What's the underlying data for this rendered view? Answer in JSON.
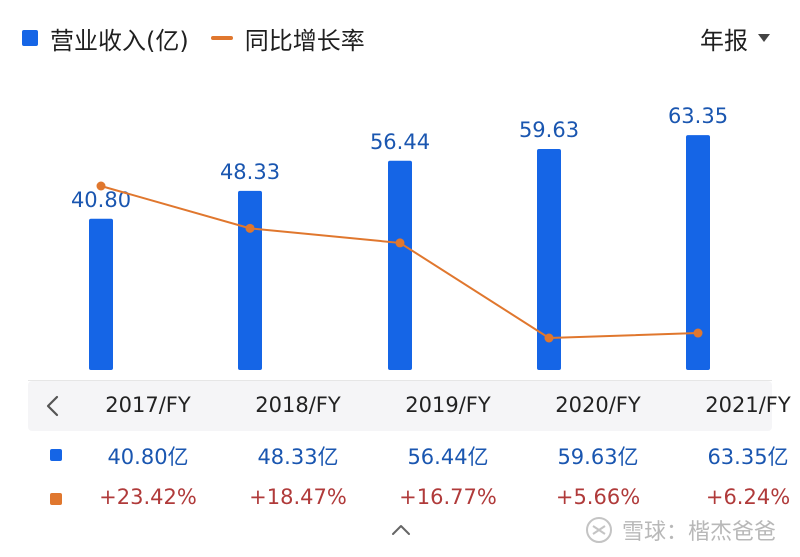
{
  "legend": {
    "revenue_label": "营业收入(亿)",
    "growth_label": "同比增长率"
  },
  "period_selector": {
    "label": "年报"
  },
  "colors": {
    "bar": "#1565e6",
    "line": "#e0772e",
    "revenue_text": "#1a56b0",
    "growth_text": "#b03a3a"
  },
  "chart_data": {
    "type": "bar",
    "categories": [
      "2017/FY",
      "2018/FY",
      "2019/FY",
      "2020/FY",
      "2021/FY"
    ],
    "series": [
      {
        "name": "营业收入(亿)",
        "type": "bar",
        "values": [
          40.8,
          48.33,
          56.44,
          59.63,
          63.35
        ]
      },
      {
        "name": "同比增长率",
        "type": "line",
        "values": [
          23.42,
          18.47,
          16.77,
          5.66,
          6.24
        ]
      }
    ],
    "data_labels": [
      "40.80",
      "48.33",
      "56.44",
      "59.63",
      "63.35"
    ],
    "legend_position": "top-left",
    "grid": false
  },
  "table": {
    "headers": [
      "2017/FY",
      "2018/FY",
      "2019/FY",
      "2020/FY",
      "2021/FY"
    ],
    "revenue_row": [
      "40.80亿",
      "48.33亿",
      "56.44亿",
      "59.63亿",
      "63.35亿"
    ],
    "growth_row": [
      "+23.42%",
      "+18.47%",
      "+16.77%",
      "+5.66%",
      "+6.24%"
    ]
  },
  "watermark": {
    "text": "雪球：楷杰爸爸"
  }
}
